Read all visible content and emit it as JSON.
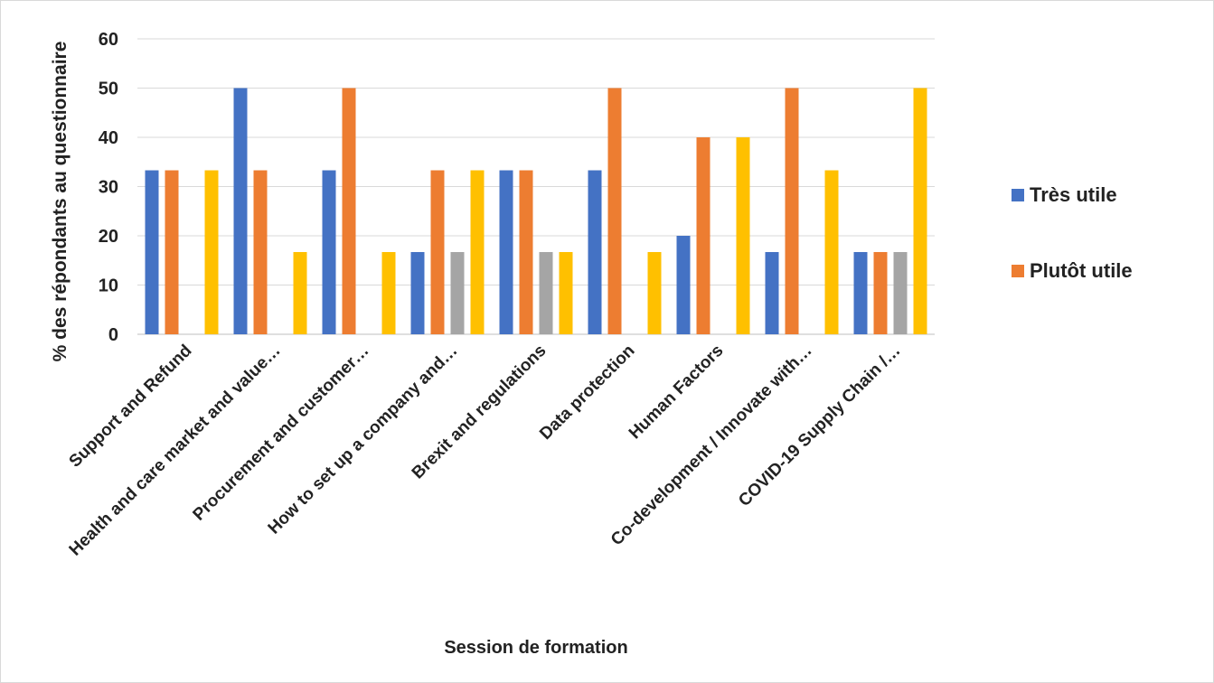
{
  "chart_data": {
    "type": "bar",
    "title": "",
    "xlabel": "Session de formation",
    "ylabel": "% des répondants au questionnaire",
    "ylim": [
      0,
      60
    ],
    "yticks": [
      0,
      10,
      20,
      30,
      40,
      50,
      60
    ],
    "grid": true,
    "legend_position": "right",
    "categories": [
      "Support and Refund",
      "Health and care market and value…",
      "Procurement and customer…",
      "How to set up a company and…",
      "Brexit and regulations",
      "Data protection",
      "Human Factors",
      "Co-development / Innovate with…",
      "COVID-19 Supply Chain /…"
    ],
    "series": [
      {
        "name": "Très utile",
        "color": "#4472C4",
        "values": [
          33.3,
          50,
          33.3,
          16.7,
          33.3,
          33.3,
          20,
          16.7,
          16.7
        ]
      },
      {
        "name": "Plutôt utile",
        "color": "#ED7D31",
        "values": [
          33.3,
          33.3,
          50,
          33.3,
          33.3,
          50,
          40,
          50,
          16.7
        ]
      },
      {
        "color": "#A5A5A5",
        "values": [
          0,
          0,
          0,
          16.7,
          16.7,
          0,
          0,
          0,
          16.7
        ]
      },
      {
        "color": "#FFC000",
        "values": [
          33.3,
          16.7,
          16.7,
          33.3,
          16.7,
          16.7,
          40,
          33.3,
          50
        ]
      }
    ]
  }
}
